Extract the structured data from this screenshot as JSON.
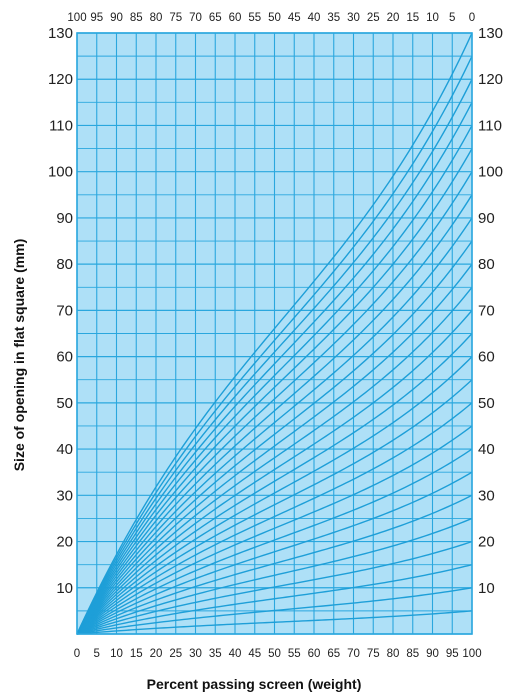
{
  "chart_data": {
    "type": "line",
    "xlabel": "Percent passing screen (weight)",
    "ylabel": "Size of opening in flat square (mm)",
    "xlim": [
      0,
      100
    ],
    "ylim": [
      0,
      130
    ],
    "x_ticks_bottom": [
      "0",
      "5",
      "10",
      "15",
      "20",
      "25",
      "30",
      "35",
      "40",
      "45",
      "50",
      "55",
      "60",
      "65",
      "70",
      "75",
      "80",
      "85",
      "90",
      "95",
      "100"
    ],
    "x_ticks_top": [
      "100",
      "95",
      "90",
      "85",
      "80",
      "75",
      "70",
      "65",
      "60",
      "55",
      "50",
      "45",
      "40",
      "35",
      "30",
      "25",
      "20",
      "15",
      "10",
      "5",
      "0"
    ],
    "y_ticks": [
      "10",
      "20",
      "30",
      "40",
      "50",
      "60",
      "70",
      "80",
      "90",
      "100",
      "110",
      "120",
      "130"
    ],
    "grid": true,
    "background_color": "#aee0f7",
    "grid_color": "#2aa7de",
    "curve_color": "#1e9fd8",
    "top_sizes_mm": [
      130,
      125,
      120,
      115,
      110,
      105,
      100,
      95,
      90,
      85,
      80,
      75,
      70,
      65,
      60,
      55,
      50,
      45,
      40,
      35,
      30,
      25,
      20,
      15,
      10,
      5
    ],
    "shape_note": "each curve runs from (0,0) to (100, top size) through a characteristic S-shaped gradation"
  }
}
